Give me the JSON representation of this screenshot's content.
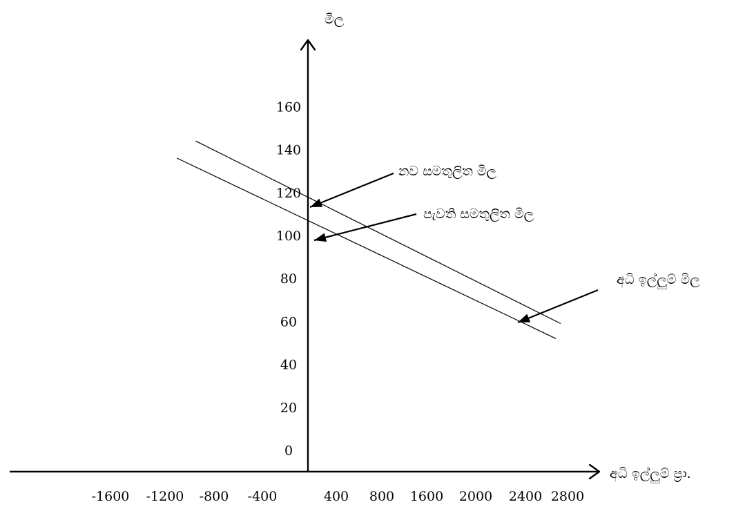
{
  "chart_data": {
    "type": "line",
    "ylabel": "මිල",
    "xlabel": "අධි ඉල්ලුම් ප්‍රා.",
    "y_ticks": [
      "0",
      "20",
      "40",
      "60",
      "80",
      "100",
      "120",
      "140",
      "160"
    ],
    "x_ticks": [
      "-1600",
      "-1200",
      "-800",
      "-400",
      "400",
      "800",
      "1600",
      "2000",
      "2400",
      "2800"
    ],
    "series": [
      {
        "x": [
          -1200,
          2700
        ],
        "y": [
          144,
          59
        ]
      },
      {
        "x": [
          -1400,
          2650
        ],
        "y": [
          136,
          52
        ]
      }
    ],
    "annotations": [
      {
        "text": "නව සමතුලිත මිල",
        "value": 110
      },
      {
        "text": "පැවති සමතුලිත මිල",
        "value": 97
      },
      {
        "text": "අධි ඉල්ලුම් මිල",
        "value": 63
      }
    ],
    "grid": false,
    "legend": "none"
  }
}
